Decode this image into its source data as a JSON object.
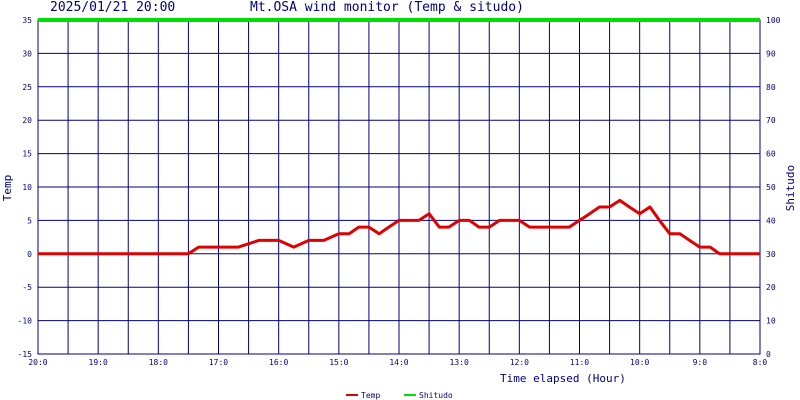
{
  "header": {
    "datetime": "2025/01/21 20:00",
    "title": "Mt.OSA wind monitor (Temp & situdo)"
  },
  "chart_data": {
    "type": "line",
    "title": "Mt.OSA wind monitor (Temp & situdo)",
    "xlabel": "Time elapsed (Hour)",
    "ylabel": "Temp",
    "y2label": "Shitudo",
    "ylim": [
      -15,
      35
    ],
    "y2lim": [
      0,
      100
    ],
    "grid": true,
    "legend_position": "bottom-center",
    "x_tick_labels": [
      "20:0",
      "19:0",
      "18:0",
      "17:0",
      "16:0",
      "15:0",
      "14:0",
      "13:0",
      "12:0",
      "11:0",
      "10:0",
      "9:0",
      "8:0"
    ],
    "y_ticks": [
      -15,
      -10,
      -5,
      0,
      5,
      10,
      15,
      20,
      25,
      30,
      35
    ],
    "y2_ticks": [
      0,
      10,
      20,
      30,
      40,
      50,
      60,
      70,
      80,
      90,
      100
    ],
    "x": [
      0,
      0.5,
      1,
      1.5,
      2,
      2.5,
      2.67,
      3,
      3.33,
      3.67,
      4,
      4.25,
      4.5,
      4.75,
      5,
      5.17,
      5.33,
      5.5,
      5.67,
      5.83,
      6,
      6.17,
      6.33,
      6.5,
      6.67,
      6.83,
      7,
      7.17,
      7.33,
      7.5,
      7.67,
      7.83,
      8,
      8.17,
      8.33,
      8.5,
      8.67,
      8.83,
      9,
      9.17,
      9.33,
      9.5,
      9.67,
      9.83,
      10,
      10.17,
      10.33,
      10.5,
      10.67,
      10.83,
      11,
      11.17,
      11.33,
      11.5,
      12
    ],
    "series": [
      {
        "name": "Temp",
        "axis": "left",
        "color": "#e00000",
        "values": [
          0,
          0,
          0,
          0,
          0,
          0,
          1,
          1,
          1,
          2,
          2,
          1,
          2,
          2,
          3,
          3,
          4,
          4,
          3,
          4,
          5,
          5,
          5,
          6,
          4,
          4,
          5,
          5,
          4,
          4,
          5,
          5,
          5,
          4,
          4,
          4,
          4,
          4,
          5,
          6,
          7,
          7,
          8,
          7,
          6,
          7,
          5,
          3,
          3,
          2,
          1,
          1,
          0,
          0,
          0
        ]
      },
      {
        "name": "Shitudo",
        "axis": "right",
        "color": "#00e000",
        "values": [
          100,
          100,
          100,
          100,
          100,
          100,
          100,
          100,
          100,
          100,
          100,
          100,
          100,
          100,
          100,
          100,
          100,
          100,
          100,
          100,
          100,
          100,
          100,
          100,
          100,
          100,
          100,
          100,
          100,
          100,
          100,
          100,
          100,
          100,
          100,
          100,
          100,
          100,
          100,
          100,
          100,
          100,
          100,
          100,
          100,
          100,
          100,
          100,
          100,
          100,
          100,
          100,
          100,
          100,
          100
        ]
      }
    ]
  }
}
